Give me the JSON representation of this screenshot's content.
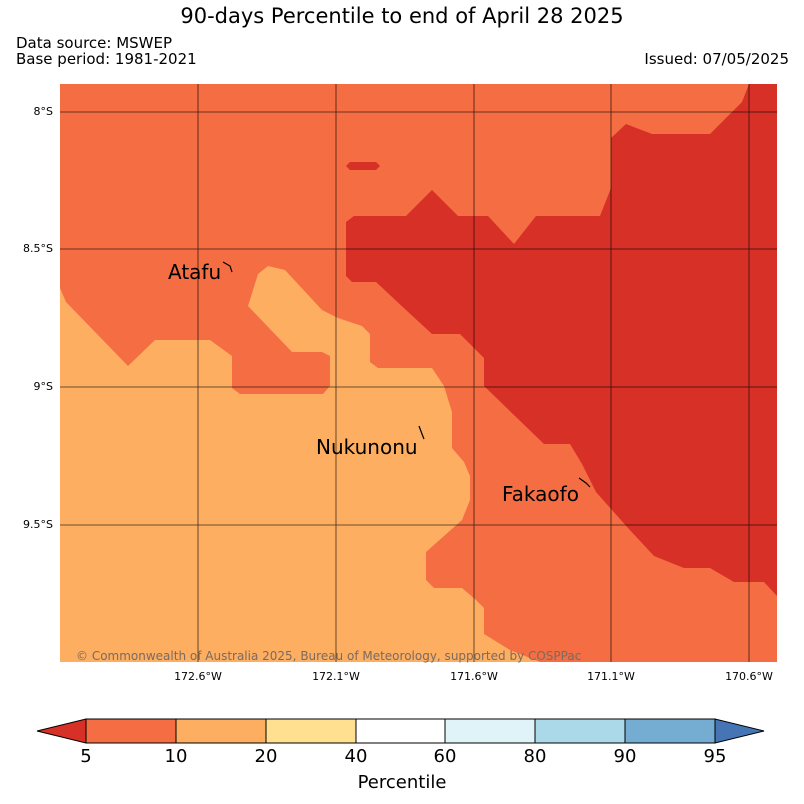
{
  "header": {
    "title": "90-days Percentile to end of April 28 2025",
    "data_source": "Data source: MSWEP",
    "base_period": "Base period: 1981-2021",
    "issued": "Issued: 07/05/2025"
  },
  "map": {
    "lat_labels": [
      "8°S",
      "8.5°S",
      "9°S",
      "9.5°S"
    ],
    "lon_labels": [
      "172.6°W",
      "172.1°W",
      "171.6°W",
      "171.1°W",
      "170.6°W"
    ],
    "places": [
      "Atafu",
      "Nukunonu",
      "Fakaofo"
    ],
    "copyright": "© Commonwealth of Australia 2025, Bureau of Meteorology, supported by COSPPac",
    "category_colors": {
      "below_5": "#d73027",
      "5_10": "#f46d43",
      "10_20": "#fdae61"
    }
  },
  "colorbar": {
    "ticks": [
      "5",
      "10",
      "20",
      "40",
      "60",
      "80",
      "90",
      "95"
    ],
    "colors": [
      "#d73027",
      "#f46d43",
      "#fdae61",
      "#fee090",
      "#ffffff",
      "#e0f3f8",
      "#abd9e9",
      "#74add1",
      "#4575b4"
    ],
    "label": "Percentile"
  }
}
